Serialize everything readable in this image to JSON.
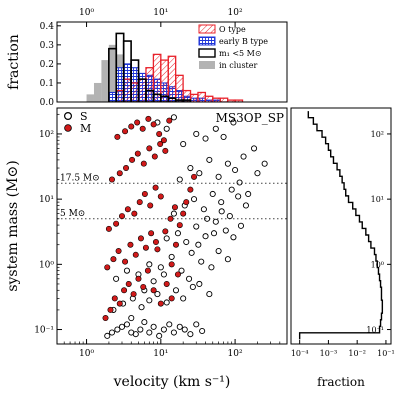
{
  "chart_data": {
    "type": "scatter",
    "title": "MS3OP_SP",
    "xlabel": "velocity (km s⁻¹)",
    "ylabel": "system mass (M⊙)",
    "x_scale": "log",
    "y_scale": "log",
    "xlim": [
      0.4,
      500
    ],
    "ylim": [
      0.06,
      250
    ],
    "x_tick_labels": [
      "10⁰",
      "10¹",
      "10²"
    ],
    "y_tick_labels": [
      "10⁻¹",
      "10⁰",
      "10¹",
      "10²"
    ],
    "reference_lines": [
      {
        "label": "17.5 M⊙",
        "y": 17.5
      },
      {
        "label": "5 M⊙",
        "y": 5
      }
    ],
    "legend": [
      {
        "label": "S",
        "style": "open circle",
        "color": "#000000"
      },
      {
        "label": "M",
        "style": "filled circle",
        "color": "#d11a1a"
      }
    ],
    "series": [
      {
        "name": "S",
        "points": [
          [
            1.9,
            0.08
          ],
          [
            2.2,
            0.09
          ],
          [
            2.6,
            0.1
          ],
          [
            3,
            0.11
          ],
          [
            3.5,
            0.12
          ],
          [
            4,
            0.09
          ],
          [
            4.6,
            0.085
          ],
          [
            5.3,
            0.1
          ],
          [
            6,
            0.13
          ],
          [
            7,
            0.09
          ],
          [
            8,
            0.11
          ],
          [
            9.5,
            0.08
          ],
          [
            11,
            0.1
          ],
          [
            13,
            0.12
          ],
          [
            15,
            0.09
          ],
          [
            18,
            0.11
          ],
          [
            21,
            0.1
          ],
          [
            25,
            0.085
          ],
          [
            30,
            0.12
          ],
          [
            36,
            0.095
          ],
          [
            2.3,
            0.2
          ],
          [
            3.1,
            0.25
          ],
          [
            4.2,
            0.3
          ],
          [
            5.5,
            0.22
          ],
          [
            7,
            0.28
          ],
          [
            9,
            0.35
          ],
          [
            12,
            0.26
          ],
          [
            16,
            0.4
          ],
          [
            20,
            0.3
          ],
          [
            27,
            0.45
          ],
          [
            33,
            0.5
          ],
          [
            45,
            0.35
          ],
          [
            2.5,
            0.6
          ],
          [
            3.5,
            0.8
          ],
          [
            5,
            0.7
          ],
          [
            7,
            1
          ],
          [
            10,
            0.9
          ],
          [
            14,
            1.3
          ],
          [
            19,
            0.8
          ],
          [
            26,
            1.5
          ],
          [
            35,
            1.1
          ],
          [
            48,
            0.9
          ],
          [
            60,
            1.6
          ],
          [
            80,
            1.2
          ],
          [
            12,
            2.5
          ],
          [
            17,
            3
          ],
          [
            22,
            2.2
          ],
          [
            30,
            3.8
          ],
          [
            40,
            2.7
          ],
          [
            55,
            4.5
          ],
          [
            75,
            3.3
          ],
          [
            95,
            2.6
          ],
          [
            120,
            3.9
          ],
          [
            15,
            6
          ],
          [
            21,
            8
          ],
          [
            28,
            10
          ],
          [
            38,
            7
          ],
          [
            50,
            12
          ],
          [
            65,
            9
          ],
          [
            90,
            14
          ],
          [
            110,
            11
          ],
          [
            140,
            8
          ],
          [
            18,
            20
          ],
          [
            25,
            30
          ],
          [
            33,
            25
          ],
          [
            45,
            40
          ],
          [
            60,
            22
          ],
          [
            80,
            35
          ],
          [
            100,
            28
          ],
          [
            130,
            45
          ],
          [
            180,
            60
          ],
          [
            20,
            70
          ],
          [
            30,
            100
          ],
          [
            40,
            85
          ],
          [
            55,
            120
          ],
          [
            70,
            90
          ],
          [
            95,
            150
          ],
          [
            9,
            150
          ],
          [
            12,
            120
          ],
          [
            15,
            180
          ],
          [
            4,
            0.15
          ],
          [
            6,
            0.4
          ],
          [
            8,
            0.55
          ],
          [
            11,
            0.7
          ],
          [
            24,
            0.6
          ],
          [
            32,
            2
          ],
          [
            42,
            5
          ],
          [
            52,
            3
          ],
          [
            66,
            6.5
          ],
          [
            85,
            5.5
          ],
          [
            115,
            18
          ],
          [
            150,
            12
          ],
          [
            200,
            25
          ],
          [
            250,
            35
          ]
        ]
      },
      {
        "name": "M",
        "points": [
          [
            1.8,
            0.15
          ],
          [
            2.1,
            0.2
          ],
          [
            2.4,
            0.3
          ],
          [
            2.8,
            0.25
          ],
          [
            3.2,
            0.4
          ],
          [
            3.7,
            0.5
          ],
          [
            4.3,
            0.35
          ],
          [
            5,
            0.6
          ],
          [
            5.8,
            0.45
          ],
          [
            6.7,
            0.8
          ],
          [
            1.9,
            0.9
          ],
          [
            2.3,
            1.2
          ],
          [
            2.7,
            1.6
          ],
          [
            3.3,
            1.1
          ],
          [
            3.9,
            2
          ],
          [
            4.6,
            1.4
          ],
          [
            5.4,
            2.5
          ],
          [
            6.3,
            1.8
          ],
          [
            7.4,
            3
          ],
          [
            8.6,
            2.2
          ],
          [
            2,
            3.5
          ],
          [
            2.5,
            4.2
          ],
          [
            3,
            5.5
          ],
          [
            3.6,
            7
          ],
          [
            4.4,
            6
          ],
          [
            5.2,
            9
          ],
          [
            6.1,
            12
          ],
          [
            7.2,
            8
          ],
          [
            8.5,
            15
          ],
          [
            10,
            11
          ],
          [
            2.2,
            20
          ],
          [
            2.8,
            25
          ],
          [
            3.4,
            30
          ],
          [
            4.1,
            40
          ],
          [
            4.9,
            50
          ],
          [
            5.9,
            35
          ],
          [
            7,
            60
          ],
          [
            8.3,
            45
          ],
          [
            9.8,
            70
          ],
          [
            11.5,
            55
          ],
          [
            2.6,
            90
          ],
          [
            3.3,
            110
          ],
          [
            4,
            130
          ],
          [
            4.8,
            150
          ],
          [
            5.7,
            120
          ],
          [
            6.8,
            170
          ],
          [
            8,
            140
          ],
          [
            9.5,
            100
          ],
          [
            11,
            80
          ],
          [
            13,
            160
          ],
          [
            12,
            0.5
          ],
          [
            14,
            1
          ],
          [
            16,
            2
          ],
          [
            18,
            4
          ],
          [
            20,
            6
          ],
          [
            22,
            9
          ],
          [
            25,
            14
          ],
          [
            28,
            22
          ],
          [
            14,
            0.3
          ],
          [
            17,
            0.7
          ],
          [
            10,
            0.25
          ],
          [
            9,
            1.7
          ],
          [
            11.5,
            3.2
          ],
          [
            13.5,
            5
          ],
          [
            15.5,
            7.5
          ],
          [
            8,
            0.4
          ]
        ]
      }
    ]
  },
  "histogram_top": {
    "ylabel": "fraction",
    "y_tick_labels": [
      "0.0",
      "0.1",
      "0.2",
      "0.3",
      "0.4"
    ],
    "ylim": [
      0,
      0.42
    ],
    "x_tick_labels": [
      "10⁰",
      "10¹",
      "10²"
    ],
    "bins_log10_velocity": [
      -0.4,
      -0.3,
      -0.2,
      -0.1,
      0,
      0.1,
      0.2,
      0.3,
      0.4,
      0.5,
      0.6,
      0.7,
      0.8,
      0.9,
      1,
      1.1,
      1.2,
      1.3,
      1.4,
      1.5,
      1.6,
      1.7,
      1.8,
      1.9,
      2,
      2.1,
      2.2,
      2.3,
      2.4
    ],
    "series": [
      {
        "name": "O type",
        "style": "hatched outline",
        "color": "#e8212a",
        "values": [
          0,
          0,
          0,
          0,
          0,
          0,
          0,
          0,
          0.06,
          0.12,
          0.1,
          0.12,
          0.18,
          0.25,
          0.22,
          0.24,
          0.14,
          0.06,
          0.04,
          0.05,
          0.03,
          0.02,
          0.02,
          0.01,
          0.01,
          0,
          0,
          0
        ]
      },
      {
        "name": "early B type",
        "style": "cross-hatched",
        "color": "#1f35d8",
        "values": [
          0,
          0,
          0,
          0,
          0,
          0,
          0,
          0.05,
          0.18,
          0.2,
          0.18,
          0.15,
          0.14,
          0.12,
          0.1,
          0.08,
          0.06,
          0.03,
          0.02,
          0.02,
          0.01,
          0.01,
          0,
          0,
          0,
          0,
          0,
          0
        ]
      },
      {
        "name": "m₁ <5 M⊙",
        "style": "black outline",
        "color": "#000000",
        "values": [
          0,
          0,
          0,
          0,
          0,
          0,
          0,
          0.28,
          0.36,
          0.32,
          0.22,
          0.12,
          0.06,
          0.04,
          0.03,
          0.02,
          0.01,
          0.01,
          0,
          0,
          0,
          0,
          0,
          0,
          0,
          0,
          0,
          0
        ]
      },
      {
        "name": "in cluster",
        "style": "filled gray",
        "color": "#b3b3b3",
        "values": [
          0,
          0,
          0,
          0,
          0.04,
          0.1,
          0.22,
          0.3,
          0.25,
          0.06,
          0,
          0,
          0,
          0,
          0,
          0,
          0,
          0,
          0,
          0,
          0,
          0,
          0,
          0,
          0,
          0,
          0,
          0
        ]
      }
    ]
  },
  "histogram_side": {
    "xlabel": "fraction",
    "x_scale": "log",
    "x_tick_labels": [
      "10⁻⁴",
      "10⁻³",
      "10⁻²",
      "10⁻¹"
    ],
    "y_tick_labels": [
      "10⁻¹",
      "10⁰",
      "10¹",
      "10²"
    ],
    "bins_log10_mass": [
      -1.15,
      -1.05,
      -0.95,
      -0.85,
      -0.75,
      -0.65,
      -0.55,
      -0.45,
      -0.35,
      -0.25,
      -0.15,
      -0.05,
      0.05,
      0.15,
      0.25,
      0.35,
      0.45,
      0.55,
      0.65,
      0.75,
      0.85,
      0.95,
      1.05,
      1.15,
      1.25,
      1.35,
      1.45,
      1.55,
      1.65,
      1.75,
      1.85,
      1.95,
      2.05,
      2.15,
      2.25
    ],
    "values": [
      0.0001,
      0.06,
      0.065,
      0.07,
      0.075,
      0.075,
      0.07,
      0.07,
      0.065,
      0.06,
      0.055,
      0.05,
      0.045,
      0.04,
      0.03,
      0.025,
      0.02,
      0.015,
      0.012,
      0.009,
      0.007,
      0.005,
      0.004,
      0.0035,
      0.003,
      0.0025,
      0.002,
      0.0015,
      0.0012,
      0.001,
      0.0008,
      0.0006,
      0.0004,
      0.0003,
      0.0002
    ]
  },
  "legend_top": [
    {
      "label": "O type"
    },
    {
      "label": "early B type"
    },
    {
      "label": "m₁ <5 M⊙"
    },
    {
      "label": "in cluster"
    }
  ]
}
